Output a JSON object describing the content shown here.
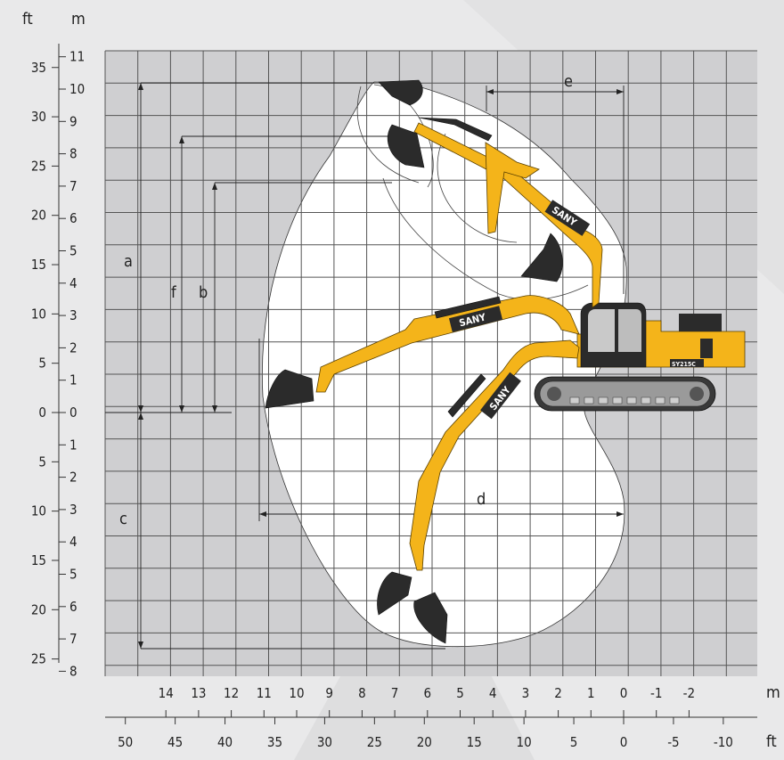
{
  "axes": {
    "left_outer_unit": "ft",
    "left_inner_unit": "m",
    "bottom_upper_unit": "m",
    "bottom_lower_unit": "ft",
    "y_m_ticks": [
      "11",
      "10",
      "9",
      "8",
      "7",
      "6",
      "5",
      "4",
      "3",
      "2",
      "1",
      "0",
      "1",
      "2",
      "3",
      "4",
      "5",
      "6",
      "7",
      "8"
    ],
    "y_ft_ticks": [
      "35",
      "30",
      "25",
      "20",
      "15",
      "10",
      "5",
      "0",
      "5",
      "10",
      "15",
      "20",
      "25"
    ],
    "x_m_ticks": [
      "14",
      "13",
      "12",
      "11",
      "10",
      "9",
      "8",
      "7",
      "6",
      "5",
      "4",
      "3",
      "2",
      "1",
      "0",
      "-1",
      "-2"
    ],
    "x_ft_ticks": [
      "50",
      "45",
      "40",
      "35",
      "30",
      "25",
      "20",
      "15",
      "10",
      "5",
      "0",
      "-5",
      "-10"
    ]
  },
  "dimensions": {
    "a": "a",
    "b": "b",
    "c": "c",
    "d": "d",
    "e": "e",
    "f": "f"
  },
  "machine": {
    "brand": "SANY",
    "model": "SY215C"
  },
  "colors": {
    "background": "#e9e9ea",
    "grid_area": "#cfcfd1",
    "envelope": "#ffffff",
    "boom_yellow": "#f4b41a",
    "bucket": "#2b2b2b",
    "accent_red": "#d8242b"
  }
}
